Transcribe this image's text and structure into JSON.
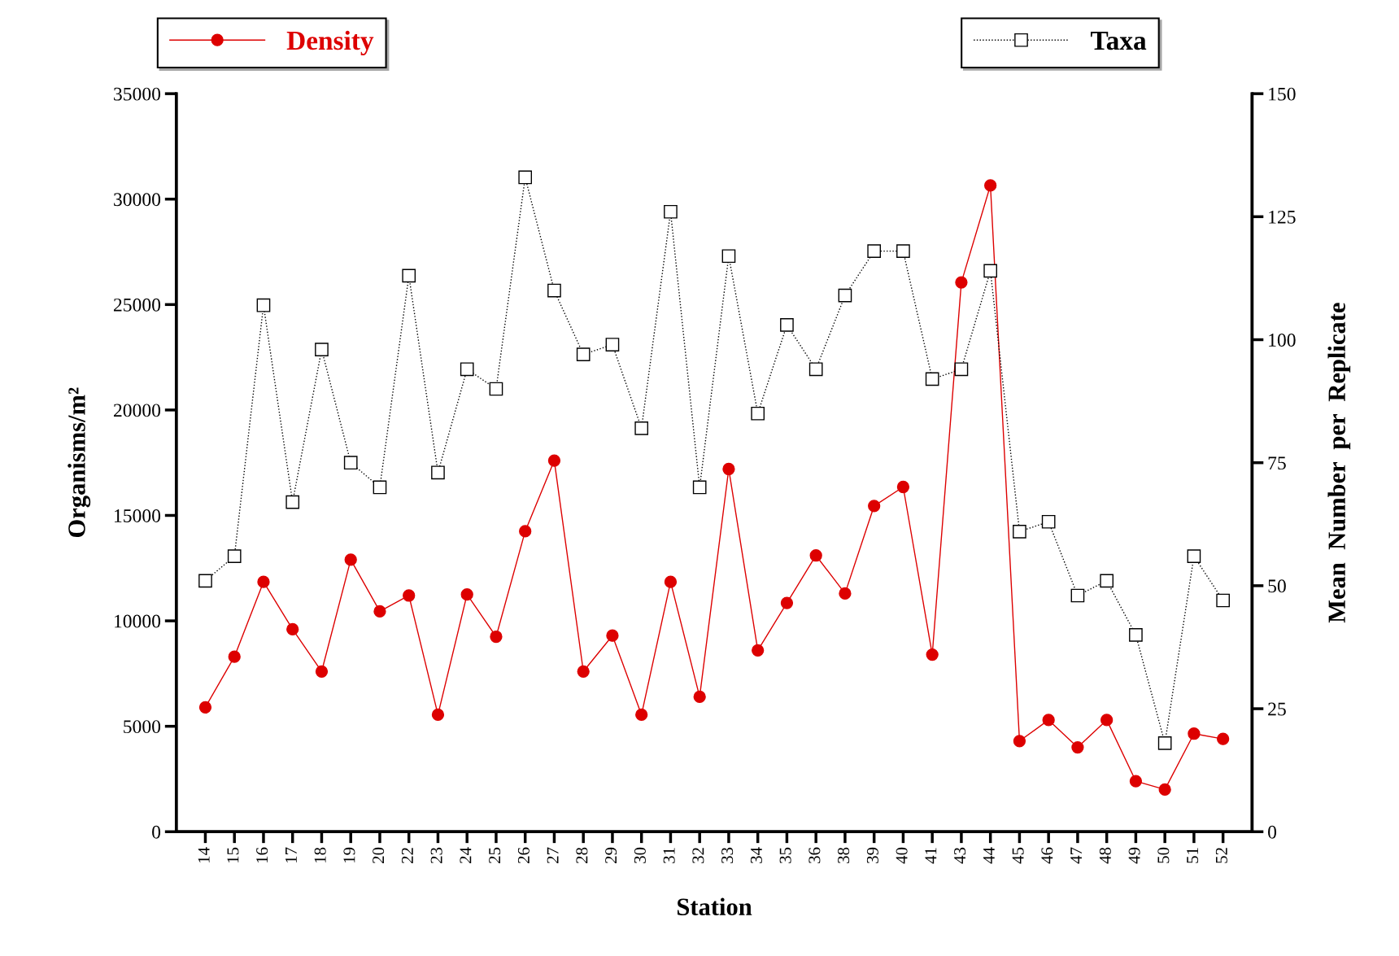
{
  "chart_data": {
    "type": "line",
    "xlabel": "Station",
    "ylabel": "Organisms/m²",
    "y2label": "Mean  Number  per  Replicate",
    "categories": [
      "14",
      "15",
      "16",
      "17",
      "18",
      "19",
      "20",
      "22",
      "23",
      "24",
      "25",
      "26",
      "27",
      "28",
      "29",
      "30",
      "31",
      "32",
      "33",
      "34",
      "35",
      "36",
      "38",
      "39",
      "40",
      "41",
      "43",
      "44",
      "45",
      "46",
      "47",
      "48",
      "49",
      "50",
      "51",
      "52"
    ],
    "series": [
      {
        "name": "Density",
        "color": "#dd0000",
        "marker": "circle",
        "line_style": "solid",
        "values": [
          5900,
          8300,
          11850,
          9600,
          7600,
          12900,
          10450,
          11200,
          5550,
          11250,
          9250,
          14250,
          17600,
          7600,
          9300,
          5550,
          11850,
          6400,
          17200,
          8600,
          10850,
          13100,
          11300,
          15450,
          16350,
          8400,
          26050,
          30650,
          4300,
          5300,
          4000,
          5300,
          2400,
          2000,
          4650,
          4400
        ]
      },
      {
        "name": "Taxa",
        "color": "#000000",
        "marker": "square",
        "line_style": "dotted",
        "axis": "y2",
        "values": [
          51,
          56,
          107,
          67,
          98,
          75,
          70,
          113,
          73,
          94,
          90,
          133,
          110,
          97,
          99,
          82,
          126,
          70,
          117,
          85,
          103,
          94,
          109,
          118,
          118,
          92,
          94,
          114,
          61,
          63,
          48,
          51,
          40,
          18,
          56,
          47
        ]
      }
    ],
    "ylim": [
      0,
      35000
    ],
    "yticks": [
      0,
      5000,
      10000,
      15000,
      20000,
      25000,
      30000,
      35000
    ],
    "y2lim": [
      0,
      150
    ],
    "y2ticks": [
      0,
      25,
      50,
      75,
      100,
      125,
      150
    ],
    "grid": false,
    "legend": "top"
  }
}
